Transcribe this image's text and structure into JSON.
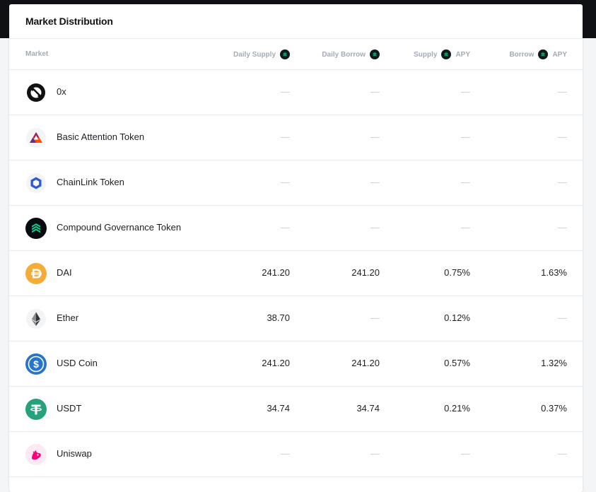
{
  "header": {
    "title": "Market Distribution"
  },
  "columns": {
    "market": "Market",
    "daily_supply": "Daily Supply",
    "daily_borrow": "Daily Borrow",
    "supply": "Supply",
    "borrow": "Borrow",
    "apy": "APY",
    "comp_icon": "comp-coin-icon"
  },
  "rows": [
    {
      "icon": "zrx-icon",
      "name": "0x",
      "daily_supply": "—",
      "daily_borrow": "—",
      "supply_apy": "—",
      "borrow_apy": "—"
    },
    {
      "icon": "bat-icon",
      "name": "Basic Attention Token",
      "daily_supply": "—",
      "daily_borrow": "—",
      "supply_apy": "—",
      "borrow_apy": "—"
    },
    {
      "icon": "chainlink-icon",
      "name": "ChainLink Token",
      "daily_supply": "—",
      "daily_borrow": "—",
      "supply_apy": "—",
      "borrow_apy": "—"
    },
    {
      "icon": "comp-icon",
      "name": "Compound Governance Token",
      "daily_supply": "—",
      "daily_borrow": "—",
      "supply_apy": "—",
      "borrow_apy": "—"
    },
    {
      "icon": "dai-icon",
      "name": "DAI",
      "daily_supply": "241.20",
      "daily_borrow": "241.20",
      "supply_apy": "0.75%",
      "borrow_apy": "1.63%"
    },
    {
      "icon": "ether-icon",
      "name": "Ether",
      "daily_supply": "38.70",
      "daily_borrow": "—",
      "supply_apy": "0.12%",
      "borrow_apy": "—"
    },
    {
      "icon": "usdc-icon",
      "name": "USD Coin",
      "daily_supply": "241.20",
      "daily_borrow": "241.20",
      "supply_apy": "0.57%",
      "borrow_apy": "1.32%"
    },
    {
      "icon": "usdt-icon",
      "name": "USDT",
      "daily_supply": "34.74",
      "daily_borrow": "34.74",
      "supply_apy": "0.21%",
      "borrow_apy": "0.37%"
    },
    {
      "icon": "uniswap-icon",
      "name": "Uniswap",
      "daily_supply": "—",
      "daily_borrow": "—",
      "supply_apy": "—",
      "borrow_apy": "—"
    }
  ],
  "colors": {
    "comp_green": "#00d395",
    "dai": "#f5ac37",
    "usdc": "#2775ca",
    "usdt": "#26a17b",
    "chainlink": "#2a5ada",
    "uniswap": "#ff007a",
    "bat": "#ff5000"
  }
}
